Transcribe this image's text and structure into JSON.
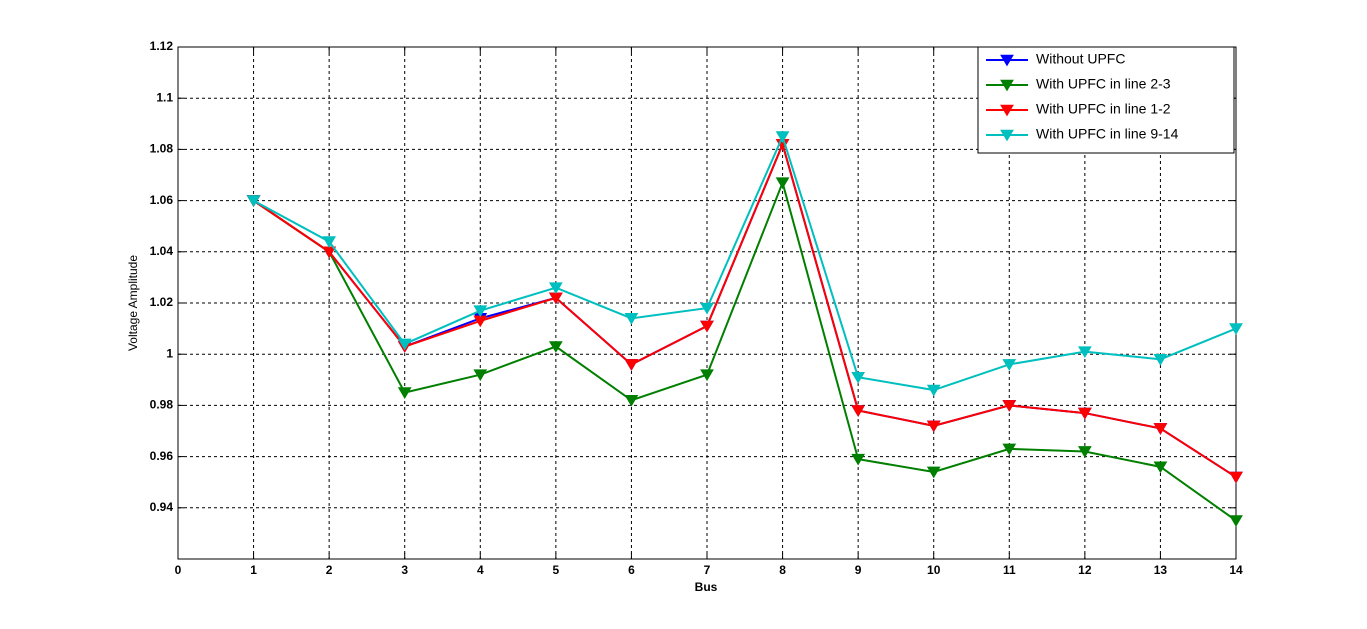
{
  "chart_data": {
    "type": "line",
    "x_label": "Bus",
    "y_label": "Voltage Amplitude",
    "x": [
      1,
      2,
      3,
      4,
      5,
      6,
      7,
      8,
      9,
      10,
      11,
      12,
      13,
      14
    ],
    "series": [
      {
        "name": "Without UPFC",
        "color": "#0000ff",
        "values": [
          1.06,
          1.04,
          1.003,
          1.014,
          1.022,
          0.996,
          1.011,
          1.082,
          0.978,
          0.972,
          0.98,
          0.977,
          0.971,
          0.952
        ]
      },
      {
        "name": "With UPFC in line 2-3",
        "color": "#007f00",
        "values": [
          1.06,
          1.04,
          0.985,
          0.992,
          1.003,
          0.982,
          0.992,
          1.067,
          0.959,
          0.954,
          0.963,
          0.962,
          0.956,
          0.935
        ]
      },
      {
        "name": "With UPFC in line 1-2",
        "color": "#ff0000",
        "values": [
          1.06,
          1.04,
          1.003,
          1.013,
          1.022,
          0.996,
          1.011,
          1.082,
          0.978,
          0.972,
          0.98,
          0.977,
          0.971,
          0.952
        ]
      },
      {
        "name": "With UPFC in line 9-14",
        "color": "#00bfbf",
        "values": [
          1.06,
          1.044,
          1.004,
          1.017,
          1.026,
          1.014,
          1.018,
          1.085,
          0.991,
          0.986,
          0.996,
          1.001,
          0.998,
          1.01
        ]
      }
    ],
    "xlim": [
      0,
      14
    ],
    "xticks": [
      0,
      1,
      2,
      3,
      4,
      5,
      6,
      7,
      8,
      9,
      10,
      11,
      12,
      13,
      14
    ],
    "ylim": [
      0.92,
      1.12
    ],
    "yticks": [
      0.94,
      0.96,
      0.98,
      1,
      1.02,
      1.04,
      1.06,
      1.08,
      1.1,
      1.12
    ],
    "grid": true,
    "legend": "top-right",
    "marker": "triangle-down"
  }
}
